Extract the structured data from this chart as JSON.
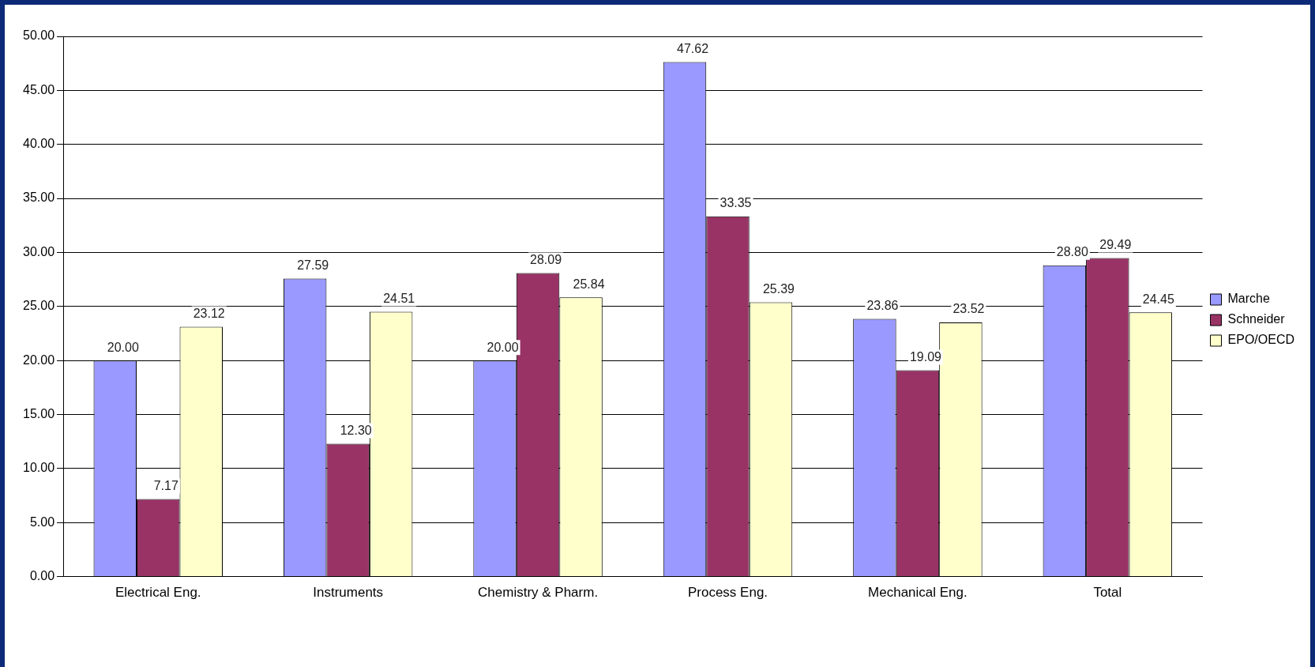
{
  "chart_data": {
    "type": "bar",
    "categories": [
      "Electrical Eng.",
      "Instruments",
      "Chemistry & Pharm.",
      "Process Eng.",
      "Mechanical Eng.",
      "Total"
    ],
    "series": [
      {
        "name": "Marche",
        "color": "#9999ff",
        "values": [
          20.0,
          27.59,
          20.0,
          47.62,
          23.86,
          28.8
        ],
        "value_labels": [
          "20.00",
          "27.59",
          "20.00",
          "47.62",
          "23.86",
          "28.80"
        ]
      },
      {
        "name": "Schneider",
        "color": "#993366",
        "values": [
          7.17,
          12.3,
          28.09,
          33.35,
          19.09,
          29.49
        ],
        "value_labels": [
          "7.17",
          "12.30",
          "28.09",
          "33.35",
          "19.09",
          "29.49"
        ]
      },
      {
        "name": "EPO/OECD",
        "color": "#ffffcc",
        "values": [
          23.12,
          24.51,
          25.84,
          25.39,
          23.52,
          24.45
        ],
        "value_labels": [
          "23.12",
          "24.51",
          "25.84",
          "25.39",
          "23.52",
          "24.45"
        ]
      }
    ],
    "ylim": [
      0,
      50
    ],
    "yticks": [
      {
        "value": 0,
        "label": "0.00"
      },
      {
        "value": 5,
        "label": "5.00"
      },
      {
        "value": 10,
        "label": "10.00"
      },
      {
        "value": 15,
        "label": "15.00"
      },
      {
        "value": 20,
        "label": "20.00"
      },
      {
        "value": 25,
        "label": "25.00"
      },
      {
        "value": 30,
        "label": "30.00"
      },
      {
        "value": 35,
        "label": "35.00"
      },
      {
        "value": 40,
        "label": "40.00"
      },
      {
        "value": 45,
        "label": "45.00"
      },
      {
        "value": 50,
        "label": "50.00"
      }
    ],
    "grid": "y",
    "legend": "right"
  }
}
